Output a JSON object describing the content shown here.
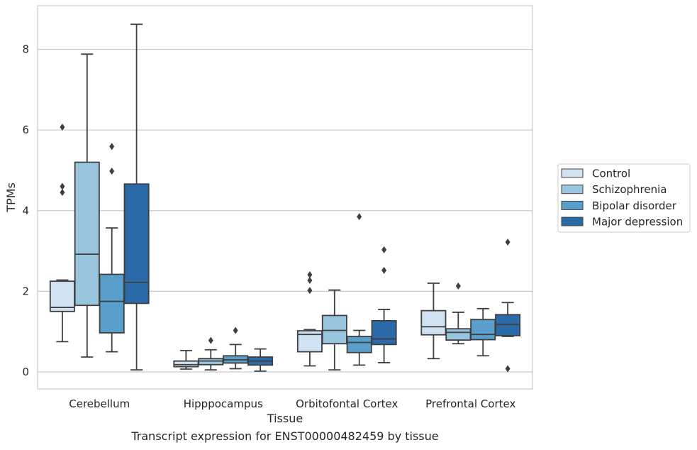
{
  "caption": "Transcript expression for ENST00000482459 by tissue",
  "chart_data": {
    "type": "box",
    "xlabel": "Tissue",
    "ylabel": "TPMs",
    "ylim": [
      -0.4,
      9.05
    ],
    "yticks": [
      0,
      2,
      4,
      6,
      8
    ],
    "grid": true,
    "legend_position": "right",
    "categories": [
      "Cerebellum",
      "Hipppocampus",
      "Orbitofontal Cortex",
      "Prefrontal Cortex"
    ],
    "series": [
      {
        "name": "Control",
        "color": "#d1e2f2",
        "boxes": [
          {
            "whislo": 0.75,
            "q1": 1.5,
            "med": 1.6,
            "q3": 2.25,
            "whishi": 2.28,
            "fliers": [
              4.45,
              4.6,
              6.07
            ]
          },
          {
            "whislo": 0.07,
            "q1": 0.13,
            "med": 0.18,
            "q3": 0.27,
            "whishi": 0.53,
            "fliers": []
          },
          {
            "whislo": 0.15,
            "q1": 0.5,
            "med": 0.93,
            "q3": 1.02,
            "whishi": 1.05,
            "fliers": [
              2.02,
              2.27,
              2.41
            ]
          },
          {
            "whislo": 0.33,
            "q1": 0.92,
            "med": 1.12,
            "q3": 1.52,
            "whishi": 2.2,
            "fliers": []
          }
        ]
      },
      {
        "name": "Schizophrenia",
        "color": "#9ac5df",
        "boxes": [
          {
            "whislo": 0.37,
            "q1": 1.65,
            "med": 2.92,
            "q3": 5.2,
            "whishi": 7.88,
            "fliers": []
          },
          {
            "whislo": 0.05,
            "q1": 0.18,
            "med": 0.27,
            "q3": 0.33,
            "whishi": 0.55,
            "fliers": [
              0.78
            ]
          },
          {
            "whislo": 0.05,
            "q1": 0.7,
            "med": 1.03,
            "q3": 1.4,
            "whishi": 2.03,
            "fliers": []
          },
          {
            "whislo": 0.7,
            "q1": 0.79,
            "med": 0.98,
            "q3": 1.07,
            "whishi": 1.48,
            "fliers": [
              2.13
            ]
          }
        ]
      },
      {
        "name": "Bipolar disorder",
        "color": "#5a9fcc",
        "boxes": [
          {
            "whislo": 0.5,
            "q1": 0.97,
            "med": 1.75,
            "q3": 2.42,
            "whishi": 3.57,
            "fliers": [
              4.98,
              5.59
            ]
          },
          {
            "whislo": 0.08,
            "q1": 0.22,
            "med": 0.3,
            "q3": 0.4,
            "whishi": 0.68,
            "fliers": [
              1.03
            ]
          },
          {
            "whislo": 0.17,
            "q1": 0.48,
            "med": 0.73,
            "q3": 0.88,
            "whishi": 1.03,
            "fliers": [
              3.85
            ]
          },
          {
            "whislo": 0.4,
            "q1": 0.8,
            "med": 0.93,
            "q3": 1.3,
            "whishi": 1.57,
            "fliers": []
          }
        ]
      },
      {
        "name": "Major depression",
        "color": "#2b6aa8",
        "boxes": [
          {
            "whislo": 0.05,
            "q1": 1.7,
            "med": 2.22,
            "q3": 4.66,
            "whishi": 8.62,
            "fliers": []
          },
          {
            "whislo": 0.02,
            "q1": 0.17,
            "med": 0.27,
            "q3": 0.37,
            "whishi": 0.57,
            "fliers": []
          },
          {
            "whislo": 0.23,
            "q1": 0.68,
            "med": 0.82,
            "q3": 1.27,
            "whishi": 1.55,
            "fliers": [
              2.52,
              3.03
            ]
          },
          {
            "whislo": 0.88,
            "q1": 0.9,
            "med": 1.18,
            "q3": 1.42,
            "whishi": 1.72,
            "fliers": [
              0.08,
              3.22
            ]
          }
        ]
      }
    ]
  }
}
